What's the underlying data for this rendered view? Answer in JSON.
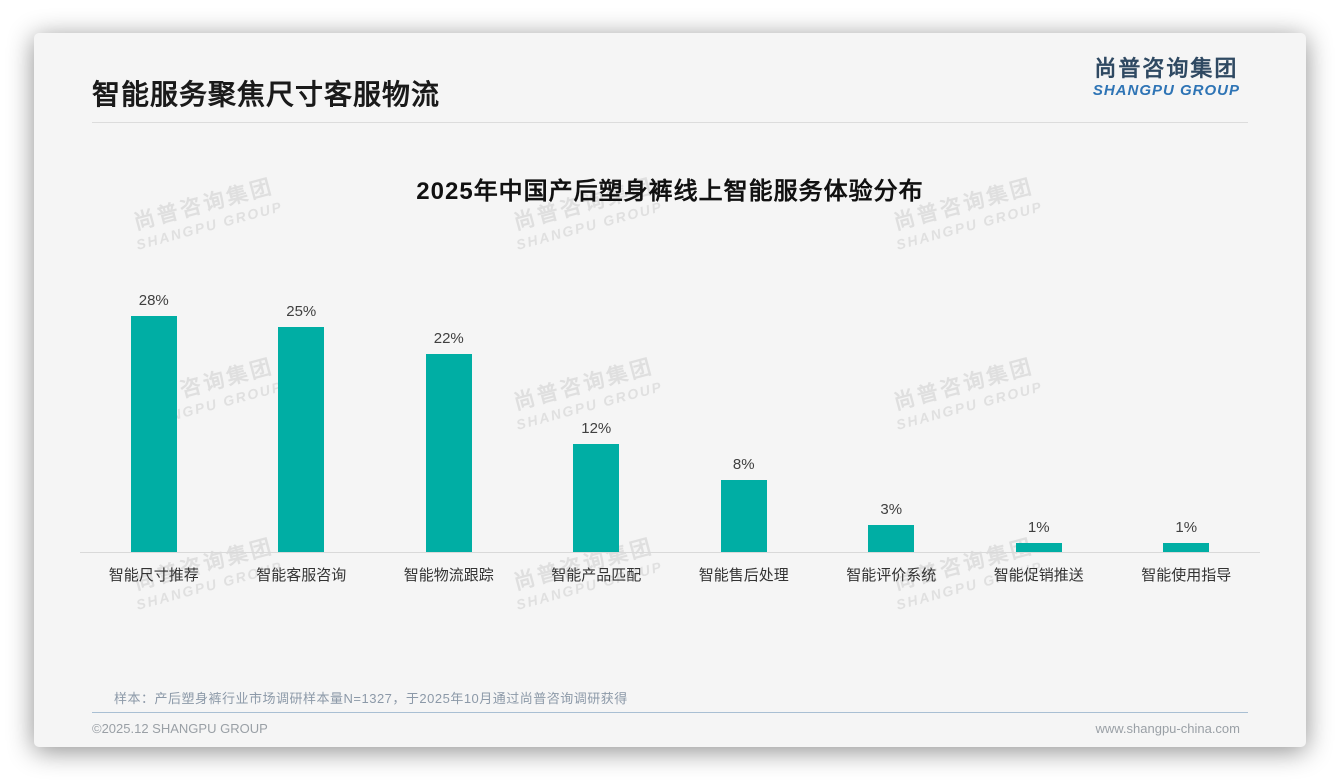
{
  "page_title": "智能服务聚焦尺寸客服物流",
  "logo": {
    "cn": "尚普咨询集团",
    "en": "SHANGPU GROUP"
  },
  "watermark": {
    "cn": "尚普咨询集团",
    "en": "SHANGPU GROUP"
  },
  "chart_data": {
    "type": "bar",
    "title": "2025年中国产后塑身裤线上智能服务体验分布",
    "categories": [
      "智能尺寸推荐",
      "智能客服咨询",
      "智能物流跟踪",
      "智能产品匹配",
      "智能售后处理",
      "智能评价系统",
      "智能促销推送",
      "智能使用指导"
    ],
    "values": [
      28,
      25,
      22,
      12,
      8,
      3,
      1,
      1
    ],
    "value_suffix": "%",
    "xlabel": "",
    "ylabel": "",
    "ylim": [
      0,
      28
    ],
    "grid": false,
    "legend": false,
    "bar_color": "#00aea4"
  },
  "footnote": "样本：产后塑身裤行业市场调研样本量N=1327，于2025年10月通过尚普咨询调研获得",
  "footer": {
    "left": "©2025.12 SHANGPU GROUP",
    "right": "www.shangpu-china.com"
  }
}
